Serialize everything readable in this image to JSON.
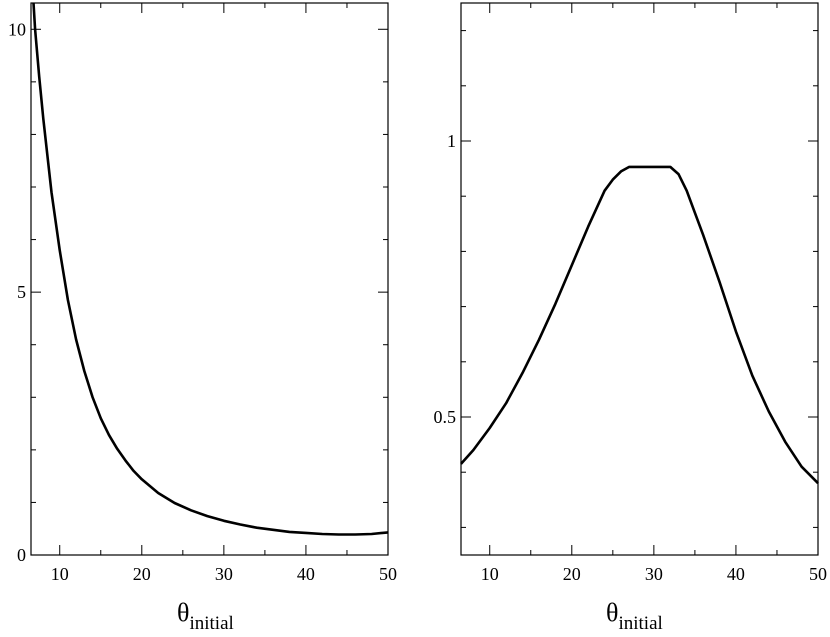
{
  "chart_data": [
    {
      "type": "line",
      "title": "",
      "xlabel": {
        "symbol": "θ",
        "subscript": "initial"
      },
      "ylabel": "",
      "xlim": [
        6.5,
        50
      ],
      "ylim": [
        0,
        10.5
      ],
      "xticks": [
        10,
        20,
        30,
        40,
        50
      ],
      "yticks": [
        0,
        5,
        10
      ],
      "grid": false,
      "series": [
        {
          "x": [
            6.8,
            7,
            7.5,
            8,
            9,
            10,
            11,
            12,
            13,
            14,
            15,
            16,
            17,
            18,
            19,
            20,
            22,
            24,
            26,
            28,
            30,
            32,
            34,
            36,
            38,
            40,
            42,
            44,
            45,
            46,
            48,
            50
          ],
          "y": [
            10.5,
            10.0,
            9.1,
            8.3,
            6.9,
            5.8,
            4.85,
            4.1,
            3.5,
            3.0,
            2.6,
            2.28,
            2.02,
            1.8,
            1.6,
            1.44,
            1.18,
            0.99,
            0.85,
            0.74,
            0.65,
            0.58,
            0.52,
            0.48,
            0.44,
            0.42,
            0.4,
            0.39,
            0.39,
            0.39,
            0.4,
            0.43
          ]
        }
      ]
    },
    {
      "type": "line",
      "title": "",
      "xlabel": {
        "symbol": "θ",
        "subscript": "initial"
      },
      "ylabel": "",
      "xlim": [
        6.5,
        50
      ],
      "ylim": [
        0.25,
        1.25
      ],
      "xticks": [
        10,
        20,
        30,
        40,
        50
      ],
      "yticks": [
        0.5,
        1
      ],
      "grid": false,
      "series": [
        {
          "x": [
            6.5,
            8,
            10,
            12,
            14,
            16,
            18,
            20,
            22,
            24,
            25,
            26,
            27,
            28,
            30,
            32,
            33,
            34,
            35,
            36,
            38,
            40,
            42,
            44,
            46,
            48,
            50
          ],
          "y": [
            0.415,
            0.44,
            0.48,
            0.525,
            0.58,
            0.64,
            0.705,
            0.775,
            0.845,
            0.91,
            0.93,
            0.945,
            0.953,
            0.953,
            0.953,
            0.953,
            0.94,
            0.91,
            0.87,
            0.83,
            0.745,
            0.655,
            0.575,
            0.51,
            0.455,
            0.41,
            0.38
          ]
        }
      ]
    }
  ]
}
